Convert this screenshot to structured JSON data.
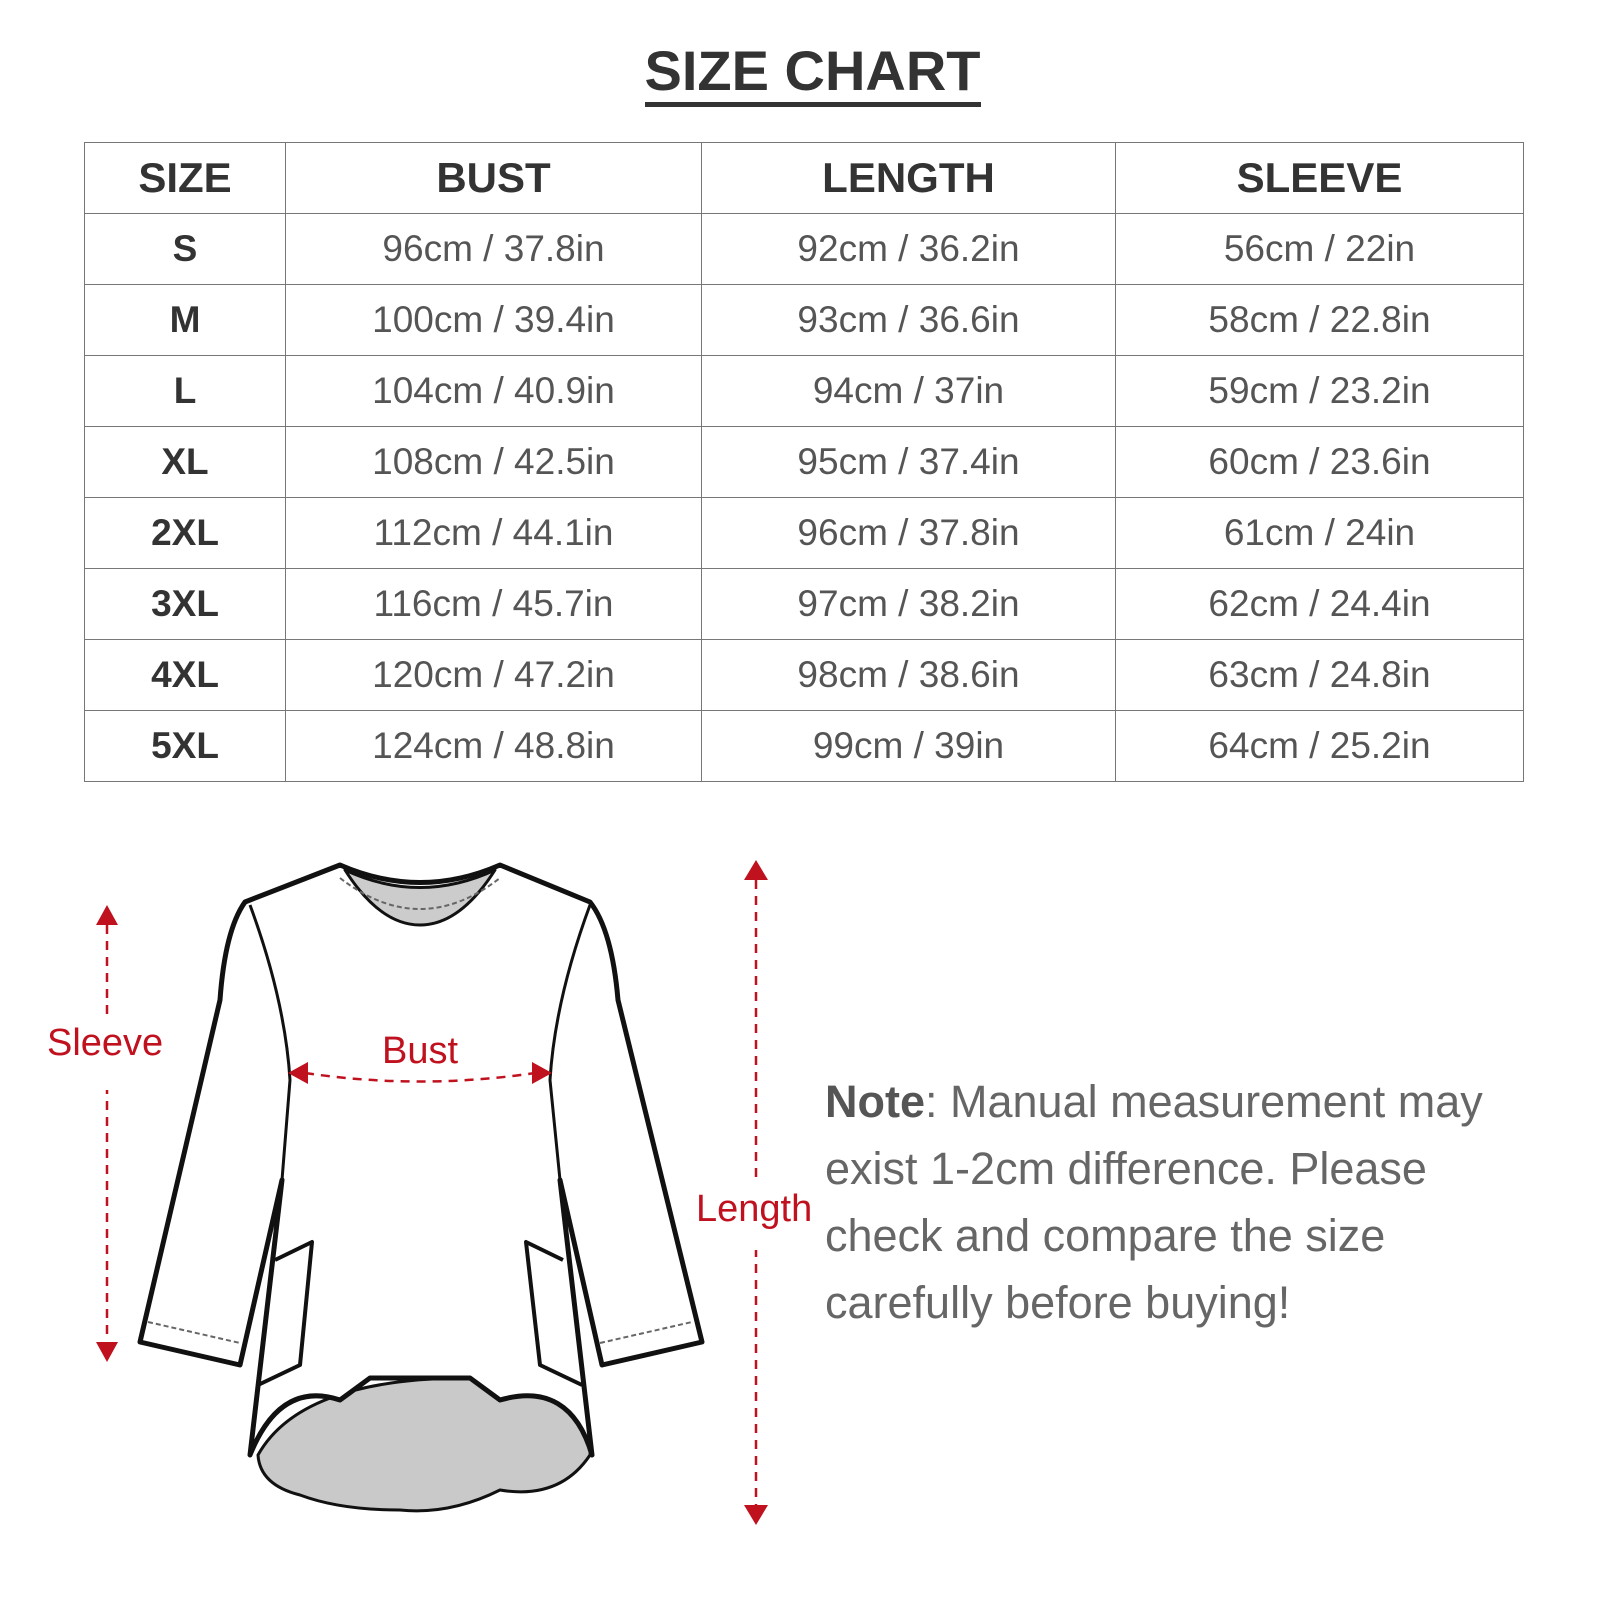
{
  "title": "SIZE CHART",
  "table": {
    "headers": [
      "SIZE",
      "BUST",
      "LENGTH",
      "SLEEVE"
    ],
    "rows": [
      [
        "S",
        "96cm / 37.8in",
        "92cm / 36.2in",
        "56cm / 22in"
      ],
      [
        "M",
        "100cm / 39.4in",
        "93cm / 36.6in",
        "58cm / 22.8in"
      ],
      [
        "L",
        "104cm / 40.9in",
        "94cm / 37in",
        "59cm / 23.2in"
      ],
      [
        "XL",
        "108cm / 42.5in",
        "95cm / 37.4in",
        "60cm / 23.6in"
      ],
      [
        "2XL",
        "112cm / 44.1in",
        "96cm / 37.8in",
        "61cm / 24in"
      ],
      [
        "3XL",
        "116cm / 45.7in",
        "97cm / 38.2in",
        "62cm / 24.4in"
      ],
      [
        "4XL",
        "120cm / 47.2in",
        "98cm / 38.6in",
        "63cm / 24.8in"
      ],
      [
        "5XL",
        "124cm / 48.8in",
        "99cm / 39in",
        "64cm / 25.2in"
      ]
    ]
  },
  "diagram": {
    "sleeve_label": "Sleeve",
    "bust_label": "Bust",
    "length_label": "Length",
    "accent_color": "#c0111f"
  },
  "note": {
    "label": "Note",
    "text": ": Manual measurement may exist 1-2cm difference. Please check and compare the size carefully before buying!"
  }
}
